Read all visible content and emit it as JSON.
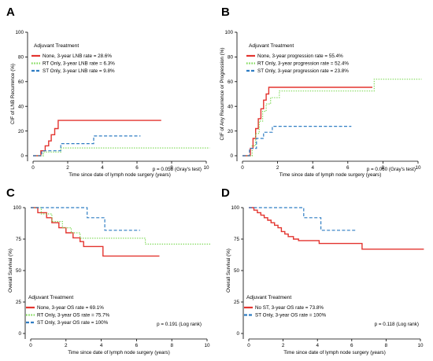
{
  "chart_data": [
    {
      "type": "line",
      "panel": "A",
      "ylabel": "CIF of LNB Recurrence (%)",
      "xlabel": "Time since date of lymph node surgery (years)",
      "xlim": [
        0,
        10
      ],
      "ylim": [
        0,
        100
      ],
      "xticks": [
        "0",
        "2",
        "4",
        "6",
        "8",
        "10"
      ],
      "yticks": [
        "0",
        "20",
        "40",
        "60",
        "80",
        "100"
      ],
      "legend_title": "Adjuvant Treatment",
      "legend_position": "top-left",
      "p_value": "p = 0.058 (Gray's test)",
      "series": [
        {
          "name": "None, 3-year LNB rate = 28.6%",
          "color": "#e3342f",
          "dash": "solid",
          "points": [
            [
              0,
              0
            ],
            [
              0.45,
              0
            ],
            [
              0.45,
              4
            ],
            [
              0.7,
              4
            ],
            [
              0.7,
              8
            ],
            [
              0.9,
              8
            ],
            [
              0.9,
              12
            ],
            [
              1.05,
              12
            ],
            [
              1.05,
              17
            ],
            [
              1.25,
              17
            ],
            [
              1.25,
              22
            ],
            [
              1.45,
              22
            ],
            [
              1.45,
              28.6
            ],
            [
              7.4,
              28.6
            ]
          ]
        },
        {
          "name": "RT Only, 3-year LNB rate = 6.3%",
          "color": "#7ed957",
          "dash": "dotted",
          "points": [
            [
              0,
              0
            ],
            [
              0.6,
              0
            ],
            [
              0.6,
              3
            ],
            [
              1.6,
              3
            ],
            [
              1.6,
              6.3
            ],
            [
              10.2,
              6.3
            ]
          ]
        },
        {
          "name": "ST Only, 3-year LNB rate = 9.8%",
          "color": "#2f7dc3",
          "dash": "dashed",
          "points": [
            [
              0,
              0
            ],
            [
              0.5,
              0
            ],
            [
              0.5,
              4
            ],
            [
              1.6,
              4
            ],
            [
              1.6,
              9.8
            ],
            [
              3.5,
              9.8
            ],
            [
              3.5,
              16
            ],
            [
              6.2,
              16
            ]
          ]
        }
      ]
    },
    {
      "type": "line",
      "panel": "B",
      "ylabel": "CIF of Any Recurrence or Progression (%)",
      "xlabel": "Time since date of lymph node surgery (years)",
      "xlim": [
        0,
        10
      ],
      "ylim": [
        0,
        100
      ],
      "xticks": [
        "0",
        "2",
        "4",
        "6",
        "8",
        "10"
      ],
      "yticks": [
        "0",
        "20",
        "40",
        "60",
        "80",
        "100"
      ],
      "legend_title": "Adjuvant Treatment",
      "legend_position": "top-left",
      "p_value": "p = 0.060 (Gray's test)",
      "series": [
        {
          "name": "None, 3-year progression rate = 55.4%",
          "color": "#e3342f",
          "dash": "solid",
          "points": [
            [
              0,
              0
            ],
            [
              0.45,
              0
            ],
            [
              0.45,
              6
            ],
            [
              0.6,
              6
            ],
            [
              0.6,
              14
            ],
            [
              0.75,
              14
            ],
            [
              0.75,
              22
            ],
            [
              0.9,
              22
            ],
            [
              0.9,
              30
            ],
            [
              1.05,
              30
            ],
            [
              1.05,
              38
            ],
            [
              1.2,
              38
            ],
            [
              1.2,
              45
            ],
            [
              1.35,
              45
            ],
            [
              1.35,
              50
            ],
            [
              1.5,
              50
            ],
            [
              1.5,
              55.4
            ],
            [
              7.4,
              55.4
            ]
          ]
        },
        {
          "name": "RT Only, 3-year progression rate = 52.4%",
          "color": "#7ed957",
          "dash": "dotted",
          "points": [
            [
              0,
              0
            ],
            [
              0.55,
              0
            ],
            [
              0.55,
              8
            ],
            [
              0.75,
              8
            ],
            [
              0.75,
              18
            ],
            [
              0.95,
              18
            ],
            [
              0.95,
              28
            ],
            [
              1.15,
              28
            ],
            [
              1.15,
              36
            ],
            [
              1.35,
              36
            ],
            [
              1.35,
              42
            ],
            [
              1.6,
              42
            ],
            [
              1.6,
              47
            ],
            [
              2.1,
              47
            ],
            [
              2.1,
              52.4
            ],
            [
              7.5,
              52.4
            ],
            [
              7.5,
              62
            ],
            [
              10.2,
              62
            ]
          ]
        },
        {
          "name": "ST Only, 3-year progression rate = 23.8%",
          "color": "#2f7dc3",
          "dash": "dashed",
          "points": [
            [
              0,
              0
            ],
            [
              0.4,
              0
            ],
            [
              0.4,
              6
            ],
            [
              0.8,
              6
            ],
            [
              0.8,
              14
            ],
            [
              1.2,
              14
            ],
            [
              1.2,
              19
            ],
            [
              1.7,
              19
            ],
            [
              1.7,
              23.8
            ],
            [
              6.2,
              23.8
            ]
          ]
        }
      ]
    },
    {
      "type": "line",
      "panel": "C",
      "ylabel": "Overall Survival (%)",
      "xlabel": "Time since date of lymph node surgery (years)",
      "xlim": [
        0,
        10
      ],
      "ylim": [
        0,
        100
      ],
      "xticks": [
        "0",
        "2",
        "4",
        "6",
        "8",
        "10"
      ],
      "yticks": [
        "0",
        "25",
        "50",
        "75",
        "100"
      ],
      "legend_title": "Adjuvant Treatment",
      "legend_position": "bottom-left",
      "p_value": "p = 0.191 (Log rank)",
      "series": [
        {
          "name": "None, 3-year OS rate = 69.1%",
          "color": "#e3342f",
          "dash": "solid",
          "points": [
            [
              0,
              100
            ],
            [
              0.4,
              100
            ],
            [
              0.4,
              96
            ],
            [
              0.9,
              96
            ],
            [
              0.9,
              92
            ],
            [
              1.2,
              92
            ],
            [
              1.2,
              88
            ],
            [
              1.6,
              88
            ],
            [
              1.6,
              84
            ],
            [
              2.0,
              84
            ],
            [
              2.0,
              80
            ],
            [
              2.4,
              80
            ],
            [
              2.4,
              76
            ],
            [
              2.8,
              76
            ],
            [
              2.8,
              73
            ],
            [
              3.0,
              73
            ],
            [
              3.0,
              69.1
            ],
            [
              4.1,
              69.1
            ],
            [
              4.1,
              61.5
            ],
            [
              7.3,
              61.5
            ]
          ]
        },
        {
          "name": "RT Only, 3-year OS rate = 75.7%",
          "color": "#7ed957",
          "dash": "dotted",
          "points": [
            [
              0,
              100
            ],
            [
              0.6,
              100
            ],
            [
              0.6,
              95
            ],
            [
              1.2,
              95
            ],
            [
              1.2,
              89
            ],
            [
              1.8,
              89
            ],
            [
              1.8,
              84
            ],
            [
              2.3,
              84
            ],
            [
              2.3,
              80
            ],
            [
              2.8,
              80
            ],
            [
              2.8,
              75.7
            ],
            [
              6.5,
              75.7
            ],
            [
              6.5,
              71
            ],
            [
              10.2,
              71
            ]
          ]
        },
        {
          "name": "ST Only, 3-year OS rate = 100%",
          "color": "#2f7dc3",
          "dash": "dashed",
          "points": [
            [
              0,
              100
            ],
            [
              3.2,
              100
            ],
            [
              3.2,
              92
            ],
            [
              4.2,
              92
            ],
            [
              4.2,
              82
            ],
            [
              6.2,
              82
            ]
          ]
        }
      ]
    },
    {
      "type": "line",
      "panel": "D",
      "ylabel": "Overall Survival (%)",
      "xlabel": "Time since date of lymph node surgery (years)",
      "xlim": [
        0,
        10
      ],
      "ylim": [
        0,
        100
      ],
      "xticks": [
        "0",
        "2",
        "4",
        "6",
        "8",
        "10"
      ],
      "yticks": [
        "0",
        "25",
        "50",
        "75",
        "100"
      ],
      "legend_title": "Adjuvant Treatment",
      "legend_position": "bottom-left",
      "p_value": "p = 0.118 (Log rank)",
      "series": [
        {
          "name": "No ST, 3-year OS rate = 73.8%",
          "color": "#e3342f",
          "dash": "solid",
          "points": [
            [
              0,
              100
            ],
            [
              0.3,
              100
            ],
            [
              0.3,
              98
            ],
            [
              0.5,
              98
            ],
            [
              0.5,
              96
            ],
            [
              0.7,
              96
            ],
            [
              0.7,
              94
            ],
            [
              0.9,
              94
            ],
            [
              0.9,
              92
            ],
            [
              1.1,
              92
            ],
            [
              1.1,
              90
            ],
            [
              1.3,
              90
            ],
            [
              1.3,
              88
            ],
            [
              1.5,
              88
            ],
            [
              1.5,
              86
            ],
            [
              1.7,
              86
            ],
            [
              1.7,
              84
            ],
            [
              1.9,
              84
            ],
            [
              1.9,
              81
            ],
            [
              2.1,
              81
            ],
            [
              2.1,
              79
            ],
            [
              2.3,
              79
            ],
            [
              2.3,
              77
            ],
            [
              2.6,
              77
            ],
            [
              2.6,
              75
            ],
            [
              2.9,
              75
            ],
            [
              2.9,
              73.8
            ],
            [
              4.1,
              73.8
            ],
            [
              4.1,
              71.5
            ],
            [
              6.6,
              71.5
            ],
            [
              6.6,
              67
            ],
            [
              10.2,
              67
            ]
          ]
        },
        {
          "name": "ST Only, 3-year OS rate = 100%",
          "color": "#2f7dc3",
          "dash": "dashed",
          "points": [
            [
              0,
              100
            ],
            [
              3.2,
              100
            ],
            [
              3.2,
              92
            ],
            [
              4.2,
              92
            ],
            [
              4.2,
              82
            ],
            [
              6.2,
              82
            ]
          ]
        }
      ]
    }
  ],
  "colors": {
    "red": "#e3342f",
    "green": "#7ed957",
    "blue": "#2f7dc3"
  }
}
